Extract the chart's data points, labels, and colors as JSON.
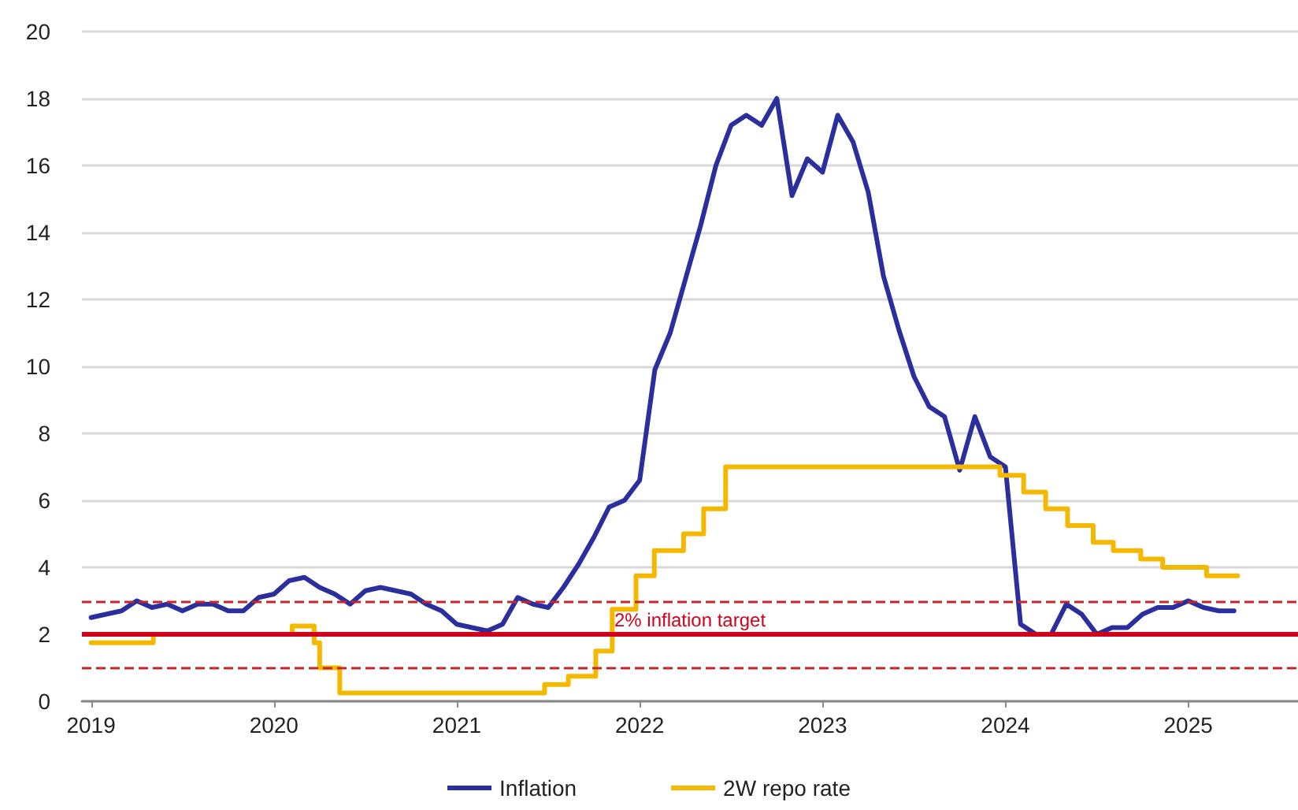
{
  "chart_data": {
    "type": "line",
    "xlim": [
      2018.95,
      2025.6
    ],
    "xticks": [
      2019,
      2020,
      2021,
      2022,
      2023,
      2024,
      2025
    ],
    "ylim": [
      0,
      20
    ],
    "yticks": [
      0,
      2,
      4,
      6,
      8,
      10,
      12,
      14,
      16,
      18,
      20
    ],
    "grid": "y",
    "legend": "bottom",
    "marker": "none",
    "series": [
      {
        "name": "Inflation",
        "color": "#2b2f9e",
        "x": [
          2019,
          2019.083,
          2019.167,
          2019.25,
          2019.333,
          2019.417,
          2019.5,
          2019.583,
          2019.667,
          2019.75,
          2019.833,
          2019.917,
          2020,
          2020.083,
          2020.167,
          2020.25,
          2020.333,
          2020.417,
          2020.5,
          2020.583,
          2020.667,
          2020.75,
          2020.833,
          2020.917,
          2021,
          2021.083,
          2021.167,
          2021.25,
          2021.333,
          2021.417,
          2021.5,
          2021.583,
          2021.667,
          2021.75,
          2021.833,
          2021.917,
          2022,
          2022.083,
          2022.167,
          2022.25,
          2022.333,
          2022.417,
          2022.5,
          2022.583,
          2022.667,
          2022.75,
          2022.833,
          2022.917,
          2023,
          2023.083,
          2023.167,
          2023.25,
          2023.333,
          2023.417,
          2023.5,
          2023.583,
          2023.667,
          2023.75,
          2023.833,
          2023.917,
          2024,
          2024.083,
          2024.167,
          2024.25,
          2024.333,
          2024.417,
          2024.5,
          2024.583,
          2024.667,
          2024.75,
          2024.833,
          2024.917,
          2025,
          2025.083,
          2025.167,
          2025.25
        ],
        "values": [
          2.5,
          2.6,
          2.7,
          3.0,
          2.8,
          2.9,
          2.7,
          2.9,
          2.9,
          2.7,
          2.7,
          3.1,
          3.2,
          3.6,
          3.7,
          3.4,
          3.2,
          2.9,
          3.3,
          3.4,
          3.3,
          3.2,
          2.9,
          2.7,
          2.3,
          2.2,
          2.1,
          2.3,
          3.1,
          2.9,
          2.8,
          3.4,
          4.1,
          4.9,
          5.8,
          6.0,
          6.6,
          9.9,
          11.0,
          12.6,
          14.2,
          16.0,
          17.2,
          17.5,
          17.2,
          18.0,
          15.1,
          16.2,
          15.8,
          17.5,
          16.7,
          15.2,
          12.7,
          11.1,
          9.7,
          8.8,
          8.5,
          6.9,
          8.5,
          7.3,
          7.0,
          2.3,
          2.0,
          2.0,
          2.9,
          2.6,
          2.0,
          2.2,
          2.2,
          2.6,
          2.8,
          2.8,
          3.0,
          2.8,
          2.7,
          2.7
        ]
      },
      {
        "name": "2W repo rate",
        "type": "step",
        "color": "#f5b800",
        "x": [
          2019,
          2019.34,
          2020.1,
          2020.22,
          2020.25,
          2020.36,
          2021.48,
          2021.61,
          2021.76,
          2021.85,
          2021.98,
          2022.08,
          2022.24,
          2022.35,
          2022.47,
          2023.97,
          2024.1,
          2024.22,
          2024.34,
          2024.48,
          2024.59,
          2024.74,
          2024.86,
          2025.1,
          2025.27
        ],
        "values": [
          1.75,
          2.0,
          2.25,
          1.75,
          1.0,
          0.25,
          0.5,
          0.75,
          1.5,
          2.75,
          3.75,
          4.5,
          5.0,
          5.75,
          7.0,
          6.75,
          6.25,
          5.75,
          5.25,
          4.75,
          4.5,
          4.25,
          4.0,
          3.75,
          3.75
        ]
      }
    ],
    "ref_lines": [
      {
        "axis": "y",
        "value": 2,
        "label": "2% inflation target",
        "color": "#d0021b",
        "line_style": "solid"
      },
      {
        "axis": "y",
        "value": 3,
        "color": "#c0282d",
        "line_style": "dashed"
      },
      {
        "axis": "y",
        "value": 1,
        "color": "#c0282d",
        "line_style": "dashed"
      }
    ]
  }
}
